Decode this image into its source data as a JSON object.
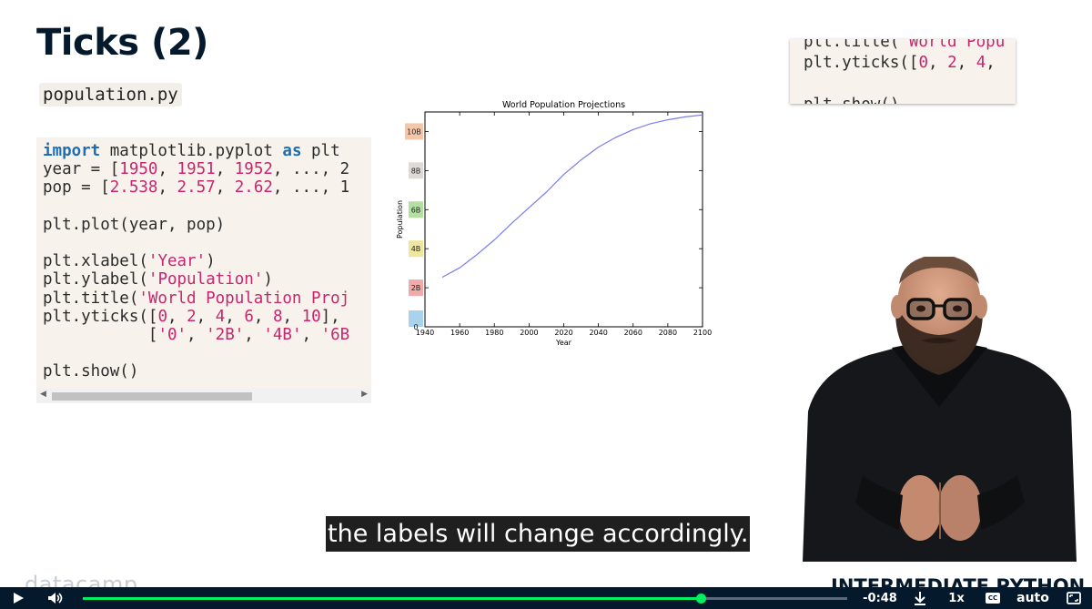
{
  "slide": {
    "title": "Ticks (2)",
    "filename": "population.py",
    "code_lines": [
      [
        {
          "t": "import",
          "c": "kw"
        },
        {
          "t": " matplotlib.pyplot "
        },
        {
          "t": "as",
          "c": "kw"
        },
        {
          "t": " plt"
        }
      ],
      [
        {
          "t": "year = ["
        },
        {
          "t": "1950",
          "c": "num"
        },
        {
          "t": ", "
        },
        {
          "t": "1951",
          "c": "num"
        },
        {
          "t": ", "
        },
        {
          "t": "1952",
          "c": "num"
        },
        {
          "t": ", ..., 2"
        }
      ],
      [
        {
          "t": "pop = ["
        },
        {
          "t": "2.538",
          "c": "num"
        },
        {
          "t": ", "
        },
        {
          "t": "2.57",
          "c": "num"
        },
        {
          "t": ", "
        },
        {
          "t": "2.62",
          "c": "num"
        },
        {
          "t": ", ..., 1"
        }
      ],
      [],
      [
        {
          "t": "plt.plot(year, pop)"
        }
      ],
      [],
      [
        {
          "t": "plt.xlabel("
        },
        {
          "t": "'Year'",
          "c": "str"
        },
        {
          "t": ")"
        }
      ],
      [
        {
          "t": "plt.ylabel("
        },
        {
          "t": "'Population'",
          "c": "str"
        },
        {
          "t": ")"
        }
      ],
      [
        {
          "t": "plt.title("
        },
        {
          "t": "'World Population Proj",
          "c": "str"
        }
      ],
      [
        {
          "t": "plt.yticks(["
        },
        {
          "t": "0",
          "c": "num"
        },
        {
          "t": ", "
        },
        {
          "t": "2",
          "c": "num"
        },
        {
          "t": ", "
        },
        {
          "t": "4",
          "c": "num"
        },
        {
          "t": ", "
        },
        {
          "t": "6",
          "c": "num"
        },
        {
          "t": ", "
        },
        {
          "t": "8",
          "c": "num"
        },
        {
          "t": ", "
        },
        {
          "t": "10",
          "c": "num"
        },
        {
          "t": "],"
        }
      ],
      [
        {
          "t": "           ["
        },
        {
          "t": "'0'",
          "c": "str"
        },
        {
          "t": ", "
        },
        {
          "t": "'2B'",
          "c": "str"
        },
        {
          "t": ", "
        },
        {
          "t": "'4B'",
          "c": "str"
        },
        {
          "t": ", "
        },
        {
          "t": "'6B",
          "c": "str"
        }
      ],
      [],
      [
        {
          "t": "plt.show()"
        }
      ]
    ],
    "snippet_lines": [
      [
        {
          "t": "plt.title("
        },
        {
          "t": "'World Popu",
          "c": "str"
        }
      ],
      [
        {
          "t": "plt.yticks(["
        },
        {
          "t": "0",
          "c": "num"
        },
        {
          "t": ", "
        },
        {
          "t": "2",
          "c": "num"
        },
        {
          "t": ", "
        },
        {
          "t": "4",
          "c": "num"
        },
        {
          "t": ","
        }
      ],
      [],
      [
        {
          "t": "plt.show()"
        }
      ]
    ],
    "caption": "the labels will change accordingly.",
    "footer_logo": "datacamp",
    "footer_course": "INTERMEDIATE PYTHON"
  },
  "chart_data": {
    "type": "line",
    "title": "World Population Projections",
    "xlabel": "Year",
    "ylabel": "Population",
    "xlim": [
      1940,
      2100
    ],
    "ylim": [
      0,
      11
    ],
    "x_ticks": [
      1940,
      1960,
      1980,
      2000,
      2020,
      2040,
      2060,
      2080,
      2100
    ],
    "y_ticks": [
      {
        "value": 0,
        "label": "0",
        "color": "#a9d3ec"
      },
      {
        "value": 2,
        "label": "2B",
        "color": "#efaaaa"
      },
      {
        "value": 4,
        "label": "4B",
        "color": "#efe79e"
      },
      {
        "value": 6,
        "label": "6B",
        "color": "#b3e0a0"
      },
      {
        "value": 8,
        "label": "8B",
        "color": "#dedbd6"
      },
      {
        "value": 10,
        "label": "10B",
        "color": "#f5c6a9"
      }
    ],
    "line_color": "#7b7bf0",
    "x": [
      1950,
      1960,
      1970,
      1980,
      1990,
      2000,
      2010,
      2020,
      2030,
      2040,
      2050,
      2060,
      2070,
      2080,
      2090,
      2100
    ],
    "y": [
      2.54,
      3.02,
      3.7,
      4.45,
      5.3,
      6.1,
      6.9,
      7.8,
      8.55,
      9.2,
      9.7,
      10.1,
      10.4,
      10.6,
      10.75,
      10.85
    ]
  },
  "player": {
    "time_remaining": "-0:48",
    "progress": 0.808,
    "speed": "1x",
    "quality": "auto",
    "cc_label": "CC",
    "icons": {
      "play": "play-icon",
      "volume": "volume-icon",
      "download": "download-icon",
      "cc": "closed-captions-icon",
      "fullscreen": "fullscreen-icon"
    }
  }
}
